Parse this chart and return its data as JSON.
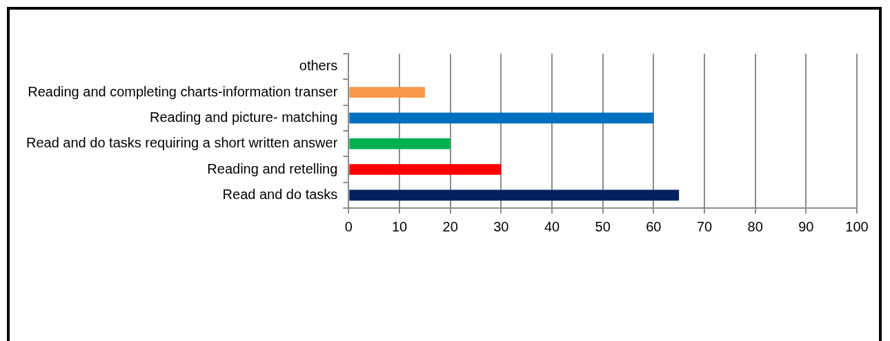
{
  "chart_data": {
    "type": "bar",
    "orientation": "horizontal",
    "categories": [
      "others",
      "Reading and completing charts-information transer",
      "Reading and picture- matching",
      "Read and do tasks requiring a short written answer",
      "Reading and retelling",
      "Read and do tasks"
    ],
    "values": [
      0,
      15,
      60,
      20,
      30,
      65
    ],
    "colors": [
      "#4472c4",
      "#f79646",
      "#0070c0",
      "#00b050",
      "#ff0000",
      "#002060"
    ],
    "xlim": [
      0,
      100
    ],
    "xticks": [
      0,
      10,
      20,
      30,
      40,
      50,
      60,
      70,
      80,
      90,
      100
    ],
    "grid": "x",
    "legend": false
  }
}
